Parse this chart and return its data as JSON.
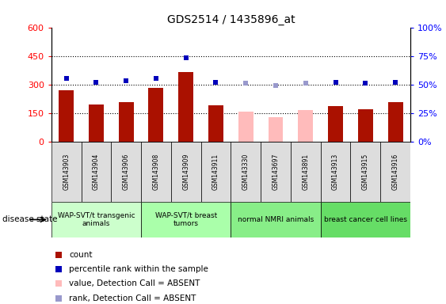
{
  "title": "GDS2514 / 1435896_at",
  "samples": [
    "GSM143903",
    "GSM143904",
    "GSM143906",
    "GSM143908",
    "GSM143909",
    "GSM143911",
    "GSM143330",
    "GSM143697",
    "GSM143891",
    "GSM143913",
    "GSM143915",
    "GSM143916"
  ],
  "bar_values": [
    270,
    193,
    205,
    283,
    365,
    188,
    null,
    null,
    null,
    185,
    170,
    205
  ],
  "bar_values_absent": [
    null,
    null,
    null,
    null,
    null,
    null,
    158,
    128,
    163,
    null,
    null,
    null
  ],
  "bar_colors_present": "#aa1100",
  "bar_colors_absent": "#ffbbbb",
  "percentile_present": [
    55,
    52,
    53,
    55,
    73,
    52,
    null,
    null,
    null,
    52,
    51,
    52
  ],
  "percentile_absent": [
    null,
    null,
    null,
    null,
    null,
    null,
    51,
    49,
    51,
    null,
    null,
    null
  ],
  "percentile_color_present": "#0000bb",
  "percentile_color_absent": "#9999cc",
  "ylim_left": [
    0,
    600
  ],
  "ylim_right": [
    0,
    100
  ],
  "yticks_left": [
    0,
    150,
    300,
    450,
    600
  ],
  "ytick_labels_left": [
    "0",
    "150",
    "300",
    "450",
    "600"
  ],
  "yticks_right": [
    0,
    25,
    50,
    75,
    100
  ],
  "ytick_labels_right": [
    "0%",
    "25%",
    "50%",
    "75%",
    "100%"
  ],
  "hlines": [
    150,
    300,
    450
  ],
  "groups": [
    {
      "label": "WAP-SVT/t transgenic\nanimals",
      "start": 0,
      "end": 3,
      "color": "#ccffcc"
    },
    {
      "label": "WAP-SVT/t breast\ntumors",
      "start": 3,
      "end": 6,
      "color": "#aaffaa"
    },
    {
      "label": "normal NMRI animals",
      "start": 6,
      "end": 9,
      "color": "#88ee88"
    },
    {
      "label": "breast cancer cell lines",
      "start": 9,
      "end": 12,
      "color": "#66dd66"
    }
  ],
  "disease_state_label": "disease state",
  "legend_items": [
    {
      "label": "count",
      "color": "#aa1100",
      "marker": "s"
    },
    {
      "label": "percentile rank within the sample",
      "color": "#0000bb",
      "marker": "s"
    },
    {
      "label": "value, Detection Call = ABSENT",
      "color": "#ffbbbb",
      "marker": "s"
    },
    {
      "label": "rank, Detection Call = ABSENT",
      "color": "#9999cc",
      "marker": "s"
    }
  ],
  "bar_width": 0.5,
  "marker_size": 5
}
